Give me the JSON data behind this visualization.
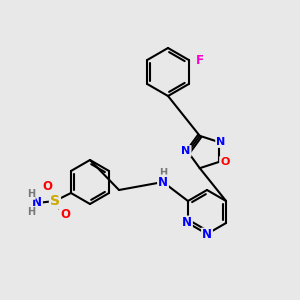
{
  "background_color": "#e8e8e8",
  "bond_color": "#000000",
  "bond_width": 1.5,
  "atom_colors": {
    "C": "#000000",
    "N": "#0000ff",
    "O": "#ff0000",
    "S": "#ccaa00",
    "F": "#ff00cc",
    "H": "#777777"
  },
  "font_size": 8.5
}
